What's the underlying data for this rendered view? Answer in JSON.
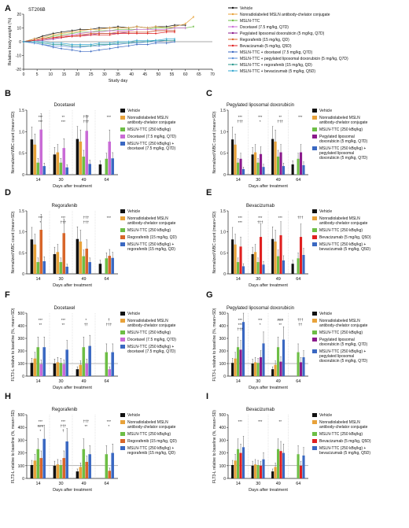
{
  "colors": {
    "vehicle": "#111111",
    "nonrad": "#E8A23A",
    "msln": "#6DBE45",
    "chemo": "#C96BD6",
    "ttc": "#3A68C2",
    "pld": "#8B1A8C",
    "rego": "#D8662A",
    "beva": "#E02020"
  },
  "chart_data": [
    {
      "panel": "A",
      "type": "line",
      "title": "ST206B",
      "xlabel": "Study day",
      "ylabel": "Relative body weight (%)",
      "xlim": [
        0,
        70
      ],
      "ylim": [
        -20,
        20
      ],
      "xticks": [
        0,
        5,
        10,
        15,
        20,
        25,
        30,
        35,
        40,
        45,
        50,
        55,
        60,
        65,
        70
      ],
      "yticks": [
        -20,
        -10,
        0,
        10,
        20
      ],
      "x": [
        0,
        4,
        7,
        11,
        14,
        18,
        21,
        25,
        28,
        32,
        35,
        39,
        42,
        46,
        49,
        53,
        56,
        60,
        63
      ],
      "series": [
        {
          "name": "Vehicle",
          "color": "#111111",
          "values": [
            0,
            2,
            4,
            6,
            7,
            8,
            9,
            9,
            10,
            10,
            11,
            10,
            11,
            10,
            11,
            11,
            12,
            12,
            null
          ]
        },
        {
          "name": "Nonradiolabeled MSLN antibody-chelator conjugate",
          "color": "#E8A23A",
          "values": [
            0,
            2,
            3,
            5,
            6,
            7,
            8,
            9,
            9,
            10,
            10,
            10,
            11,
            10,
            11,
            10,
            11,
            13,
            18
          ]
        },
        {
          "name": "MSLN-TTC",
          "color": "#6DBE45",
          "values": [
            0,
            1,
            2,
            4,
            5,
            6,
            7,
            7,
            8,
            8,
            9,
            9,
            9,
            9,
            10,
            10,
            10,
            10,
            11
          ]
        },
        {
          "name": "Docetaxel (7.5 mg/kg, Q7D)",
          "color": "#C96BD6",
          "values": [
            0,
            1,
            2,
            3,
            4,
            5,
            6,
            7,
            7,
            8,
            8,
            8,
            9,
            9,
            9,
            9,
            10,
            10,
            null
          ]
        },
        {
          "name": "Pegylated liposomal doxorubicin (5 mg/kg, Q7D)",
          "color": "#8B1A8C",
          "values": [
            0,
            1,
            1,
            2,
            3,
            4,
            5,
            5,
            6,
            6,
            6,
            7,
            7,
            7,
            8,
            8,
            8,
            null,
            null
          ]
        },
        {
          "name": "Regorafenib (15 mg/kg, QD)",
          "color": "#D8662A",
          "values": [
            0,
            1,
            2,
            3,
            4,
            4,
            5,
            6,
            6,
            6,
            7,
            7,
            7,
            7,
            8,
            8,
            8,
            null,
            null
          ]
        },
        {
          "name": "Bevacizumab (5 mg/kg, Q5D)",
          "color": "#E02020",
          "values": [
            0,
            1,
            2,
            3,
            3,
            4,
            4,
            5,
            5,
            5,
            6,
            6,
            6,
            6,
            6,
            7,
            7,
            null,
            null
          ]
        },
        {
          "name": "MSLN-TTC + docetaxel (7.5 mg/kg, Q7D)",
          "color": "#3A68C2",
          "values": [
            0,
            -1,
            -2,
            -4,
            -5,
            -6,
            -7,
            -7,
            -6,
            -5,
            -4,
            -3,
            -2,
            -2,
            -1,
            -1,
            0,
            null,
            null
          ]
        },
        {
          "name": "MSLN-TTC + pegylated liposomal doxorubicin (5 mg/kg, Q7D)",
          "color": "#5B8CD6",
          "values": [
            0,
            -1,
            -2,
            -3,
            -3,
            -4,
            -4,
            -3,
            -3,
            -2,
            -2,
            -1,
            -1,
            0,
            0,
            1,
            1,
            null,
            null
          ]
        },
        {
          "name": "MSLN-TTC + regorafenib (15 mg/kg, QD)",
          "color": "#2B9A8E",
          "values": [
            0,
            0,
            -1,
            -2,
            -2,
            -3,
            -3,
            -3,
            -2,
            -2,
            -1,
            -1,
            0,
            0,
            1,
            1,
            1,
            null,
            null
          ]
        },
        {
          "name": "MSLN-TTC + bevacizumab (5 mg/kg, Q5D)",
          "color": "#36A8D0",
          "values": [
            0,
            0,
            0,
            -1,
            -1,
            -2,
            -2,
            -2,
            -1,
            -1,
            0,
            0,
            1,
            1,
            1,
            2,
            2,
            null,
            null
          ]
        }
      ]
    },
    {
      "panel": "B",
      "type": "bar",
      "title": "Docetaxel",
      "xlabel": "Days after treatment",
      "ylabel": "Normalized WBC count (mean+SD)",
      "ylim": [
        0,
        1.5
      ],
      "yticks": [
        0,
        0.5,
        1.0,
        1.5
      ],
      "categories": [
        "14",
        "30",
        "49",
        "64"
      ],
      "legend": [
        "Vehicle",
        "Nonradiolabeled MSLN antibody-chelator conjugate",
        "MSLN-TTC (250 kBq/kg)",
        "Docetaxel (7.5 mg/kg, Q7D)",
        "MSLN-TTC (250 kBq/kg) + docetaxel (7.5 mg/kg, Q7D)"
      ],
      "series": [
        {
          "color": "#111111",
          "values": [
            0.82,
            0.47,
            0.83,
            0.24
          ]
        },
        {
          "color": "#E8A23A",
          "values": [
            0.7,
            0.52,
            0.77,
            null
          ]
        },
        {
          "color": "#6DBE45",
          "values": [
            0.28,
            0.28,
            0.42,
            0.37
          ]
        },
        {
          "color": "#C96BD6",
          "values": [
            1.05,
            0.62,
            1.02,
            0.77
          ]
        },
        {
          "color": "#3A68C2",
          "values": [
            0.2,
            0.17,
            0.25,
            0.38
          ]
        }
      ],
      "annotations": [
        "***",
        "**",
        "†††",
        "***",
        "***",
        "***",
        "†††"
      ]
    },
    {
      "panel": "C",
      "type": "bar",
      "title": "Pegylated liposomal doxorubicin",
      "xlabel": "Days after treatment",
      "ylabel": "Normalized WBC count (mean+SD)",
      "ylim": [
        0,
        1.5
      ],
      "yticks": [
        0,
        0.5,
        1.0,
        1.5
      ],
      "categories": [
        "14",
        "30",
        "49",
        "64"
      ],
      "legend": [
        "Vehicle",
        "Nonradiolabeled MSLN antibody-chelator conjugate",
        "MSLN-TTC (250 kBq/kg)",
        "Pegylated liposomal doxorubicin (5 mg/kg, Q7D)",
        "MSLN-TTC (250 kBq/kg) + pegylated liposomal doxorubicin (5 mg/kg, Q7D)"
      ],
      "series": [
        {
          "color": "#111111",
          "values": [
            0.82,
            0.47,
            0.83,
            0.24
          ]
        },
        {
          "color": "#E8A23A",
          "values": [
            0.7,
            0.52,
            0.77,
            null
          ]
        },
        {
          "color": "#6DBE45",
          "values": [
            0.28,
            0.28,
            0.42,
            0.37
          ]
        },
        {
          "color": "#8B1A8C",
          "values": [
            0.37,
            0.48,
            0.52,
            0.52
          ]
        },
        {
          "color": "#3A68C2",
          "values": [
            0.13,
            0.18,
            0.2,
            0.22
          ]
        }
      ],
      "annotations": [
        "***",
        "***",
        "**",
        "***",
        "†††",
        "*",
        "†††"
      ]
    },
    {
      "panel": "D",
      "type": "bar",
      "title": "Regorafenib",
      "xlabel": "Days after treatment",
      "ylabel": "Normalized WBC count (mean+SD)",
      "ylim": [
        0,
        1.5
      ],
      "yticks": [
        0,
        0.5,
        1.0,
        1.5
      ],
      "categories": [
        "14",
        "30",
        "49",
        "64"
      ],
      "legend": [
        "Vehicle",
        "Nonradiolabeled MSLN antibody-chelator conjugate",
        "MSLN-TTC (250 kBq/kg)",
        "Regorafenib (15 mg/kg, QD)",
        "MSLN-TTC (250 kBq/kg) + regorafenib (15 mg/kg, QD)"
      ],
      "series": [
        {
          "color": "#111111",
          "values": [
            0.82,
            0.47,
            0.83,
            0.24
          ]
        },
        {
          "color": "#E8A23A",
          "values": [
            0.7,
            0.52,
            0.77,
            null
          ]
        },
        {
          "color": "#6DBE45",
          "values": [
            0.28,
            0.28,
            0.42,
            0.37
          ]
        },
        {
          "color": "#D8662A",
          "values": [
            1.05,
            0.97,
            0.6,
            0.43
          ]
        },
        {
          "color": "#3A68C2",
          "values": [
            0.3,
            0.17,
            0.28,
            0.38
          ]
        }
      ],
      "annotations": [
        "***",
        "***",
        "†††",
        "***",
        "*",
        "†††",
        "†††"
      ]
    },
    {
      "panel": "E",
      "type": "bar",
      "title": "Bevacizumab",
      "xlabel": "Days after treatment",
      "ylabel": "Normalized WBC count (mean+SD)",
      "ylim": [
        0,
        1.5
      ],
      "yticks": [
        0,
        0.5,
        1.0,
        1.5
      ],
      "categories": [
        "14",
        "30",
        "49",
        "64"
      ],
      "legend": [
        "Vehicle",
        "Nonradiolabeled MSLN antibody-chelator conjugate",
        "MSLN-TTC (250 kBq/kg)",
        "Bevacizumab (5 mg/kg, Q5D)",
        "MSLN-TTC (250 kBq/kg) + bevacizumab (5 mg/kg, Q5D)"
      ],
      "series": [
        {
          "color": "#111111",
          "values": [
            0.82,
            0.47,
            0.83,
            0.24
          ]
        },
        {
          "color": "#E8A23A",
          "values": [
            0.7,
            0.52,
            0.77,
            null
          ]
        },
        {
          "color": "#6DBE45",
          "values": [
            0.28,
            0.28,
            0.42,
            0.37
          ]
        },
        {
          "color": "#E02020",
          "values": [
            0.65,
            0.88,
            0.92,
            0.88
          ]
        },
        {
          "color": "#3A68C2",
          "values": [
            0.18,
            0.22,
            0.32,
            0.45
          ]
        }
      ],
      "annotations": [
        "***",
        "***",
        "***",
        "†††",
        "***",
        "†††"
      ]
    },
    {
      "panel": "F",
      "type": "bar",
      "title": "Docetaxel",
      "xlabel": "Days after treatment",
      "ylabel": "FLT3-L relative to baseline (%, mean+SD)",
      "ylim": [
        0,
        500
      ],
      "yticks": [
        0,
        100,
        200,
        300,
        400,
        500
      ],
      "categories": [
        "14",
        "30",
        "49",
        "64"
      ],
      "legend": [
        "Vehicle",
        "Nonradiolabeled MSLN antibody-chelator conjugate",
        "MSLN-TTC (250 kBq/kg)",
        "Docetaxel (7.5 mg/kg, Q7D)",
        "MSLN-TTC (250 kBq/kg) + docetaxel (7.5 mg/kg, Q7D)"
      ],
      "series": [
        {
          "color": "#111111",
          "values": [
            105,
            100,
            55,
            null
          ]
        },
        {
          "color": "#E8A23A",
          "values": [
            140,
            110,
            90,
            null
          ]
        },
        {
          "color": "#6DBE45",
          "values": [
            230,
            105,
            230,
            190
          ]
        },
        {
          "color": "#C96BD6",
          "values": [
            95,
            95,
            100,
            55
          ]
        },
        {
          "color": "#3A68C2",
          "values": [
            230,
            210,
            240,
            190
          ]
        }
      ],
      "annotations": [
        "***",
        "***",
        "*",
        "†",
        "**",
        "**",
        "††",
        "†††"
      ]
    },
    {
      "panel": "G",
      "type": "bar",
      "title": "Pegylated liposomal doxorubicin",
      "xlabel": "Days after treatment",
      "ylabel": "FLT3-L relative to baseline (%, mean+SD)",
      "ylim": [
        0,
        500
      ],
      "yticks": [
        0,
        100,
        200,
        300,
        400,
        500
      ],
      "categories": [
        "14",
        "30",
        "49",
        "64"
      ],
      "legend": [
        "Vehicle",
        "Nonradiolabeled MSLN antibody-chelator conjugate",
        "MSLN-TTC (250 kBq/kg)",
        "Pegylated liposomal doxorubicin (5 mg/kg, Q7D)",
        "MSLN-TTC (250 kBq/kg) + pegylated liposomal doxorubicin (5 mg/kg, Q7D)"
      ],
      "series": [
        {
          "color": "#111111",
          "values": [
            105,
            100,
            55,
            null
          ]
        },
        {
          "color": "#E8A23A",
          "values": [
            140,
            110,
            90,
            null
          ]
        },
        {
          "color": "#6DBE45",
          "values": [
            230,
            105,
            230,
            190
          ]
        },
        {
          "color": "#8B1A8C",
          "values": [
            210,
            150,
            115,
            110
          ]
        },
        {
          "color": "#3A68C2",
          "values": [
            430,
            260,
            290,
            150
          ]
        }
      ],
      "annotations": [
        "***",
        "***",
        "###",
        "†††",
        "***",
        "*",
        "**",
        "††",
        "†††"
      ]
    },
    {
      "panel": "H",
      "type": "bar",
      "title": "Regorafenib",
      "xlabel": "Days after treatment",
      "ylabel": "FLT3-L relative to baseline (%, mean+SD)",
      "ylim": [
        0,
        500
      ],
      "yticks": [
        0,
        100,
        200,
        300,
        400,
        500
      ],
      "categories": [
        "14",
        "30",
        "49",
        "64"
      ],
      "legend": [
        "Vehicle",
        "Nonradiolabeled MSLN antibody-chelator conjugate",
        "MSLN-TTC (250 kBq/kg)",
        "Regorafenib (15 mg/kg, QD)",
        "MSLN-TTC (250 kBq/kg) + regorafenib (15 mg/kg, QD)"
      ],
      "series": [
        {
          "color": "#111111",
          "values": [
            105,
            100,
            55,
            null
          ]
        },
        {
          "color": "#E8A23A",
          "values": [
            140,
            110,
            90,
            null
          ]
        },
        {
          "color": "#6DBE45",
          "values": [
            230,
            105,
            230,
            190
          ]
        },
        {
          "color": "#D8662A",
          "values": [
            160,
            160,
            130,
            60
          ]
        },
        {
          "color": "#3A68C2",
          "values": [
            310,
            290,
            190,
            200
          ]
        }
      ],
      "annotations": [
        "***",
        "***",
        "†††",
        "***",
        "###",
        "†††",
        "**",
        "*",
        "*",
        "†"
      ]
    },
    {
      "panel": "I",
      "type": "bar",
      "title": "Bevacizumab",
      "xlabel": "Days after treatment",
      "ylabel": "FLT3-L relative to baseline (%, mean+SD)",
      "ylim": [
        0,
        500
      ],
      "yticks": [
        0,
        100,
        200,
        300,
        400,
        500
      ],
      "categories": [
        "14",
        "30",
        "49",
        "64"
      ],
      "legend": [
        "Vehicle",
        "Nonradiolabeled MSLN antibody-chelator conjugate",
        "MSLN-TTC (250 kBq/kg)",
        "Bevacizumab (5 mg/kg, Q5D)",
        "MSLN-TTC (250 kBq/kg) + bevacizumab (5 mg/kg, Q5D)"
      ],
      "series": [
        {
          "color": "#111111",
          "values": [
            105,
            100,
            55,
            null
          ]
        },
        {
          "color": "#E8A23A",
          "values": [
            140,
            110,
            90,
            null
          ]
        },
        {
          "color": "#6DBE45",
          "values": [
            230,
            105,
            230,
            190
          ]
        },
        {
          "color": "#E02020",
          "values": [
            200,
            100,
            215,
            100
          ]
        },
        {
          "color": "#3A68C2",
          "values": [
            245,
            150,
            200,
            180
          ]
        }
      ],
      "annotations": [
        "***",
        "***",
        "**"
      ]
    }
  ]
}
